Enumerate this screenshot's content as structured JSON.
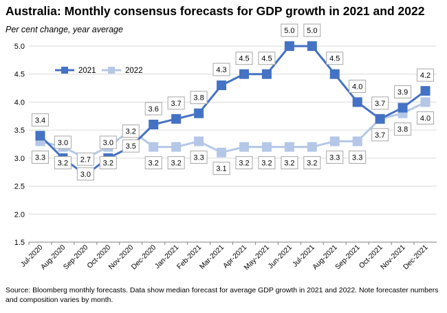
{
  "title": "Australia: Monthly consensus forecasts for GDP growth in 2021 and 2022",
  "subtitle": "Per cent change, year average",
  "source": "Source: Bloomberg monthly forecasts.  Data show median forecast for average GDP growth in 2021 and 2022.  Note forecaster numbers and composition varies by month.",
  "colors": {
    "series_2021": "#4472C4",
    "series_2022": "#B4C7E7",
    "grid": "#D9D9D9",
    "axis": "#808080"
  },
  "chart_data": {
    "type": "line",
    "categories": [
      "Jul-2020",
      "Aug-2020",
      "Sep-2020",
      "Oct-2020",
      "Nov-2020",
      "Dec-2020",
      "Jan-2021",
      "Feb-2021",
      "Mar-2021",
      "Apr-2021",
      "May-2021",
      "Jun-2021",
      "Jul-2021",
      "Aug-2021",
      "Sep-2021",
      "Oct-2021",
      "Nov-2021",
      "Dec-2021"
    ],
    "series": [
      {
        "name": "2021",
        "values": [
          3.4,
          3.0,
          2.7,
          3.0,
          3.2,
          3.6,
          3.7,
          3.8,
          4.3,
          4.5,
          4.5,
          5.0,
          5.0,
          4.5,
          4.0,
          3.7,
          3.9,
          4.2
        ]
      },
      {
        "name": "2022",
        "values": [
          3.3,
          3.2,
          3.0,
          3.2,
          3.5,
          3.2,
          3.2,
          3.3,
          3.1,
          3.2,
          3.2,
          3.2,
          3.2,
          3.3,
          3.3,
          3.7,
          3.8,
          4.0
        ]
      }
    ],
    "ylim": [
      1.5,
      5.0
    ],
    "yticks": [
      "5.0",
      "4.5",
      "4.0",
      "3.5",
      "3.0",
      "2.5",
      "2.0",
      "1.5"
    ],
    "grid": true,
    "legend": "top-left",
    "data_labels": true
  }
}
